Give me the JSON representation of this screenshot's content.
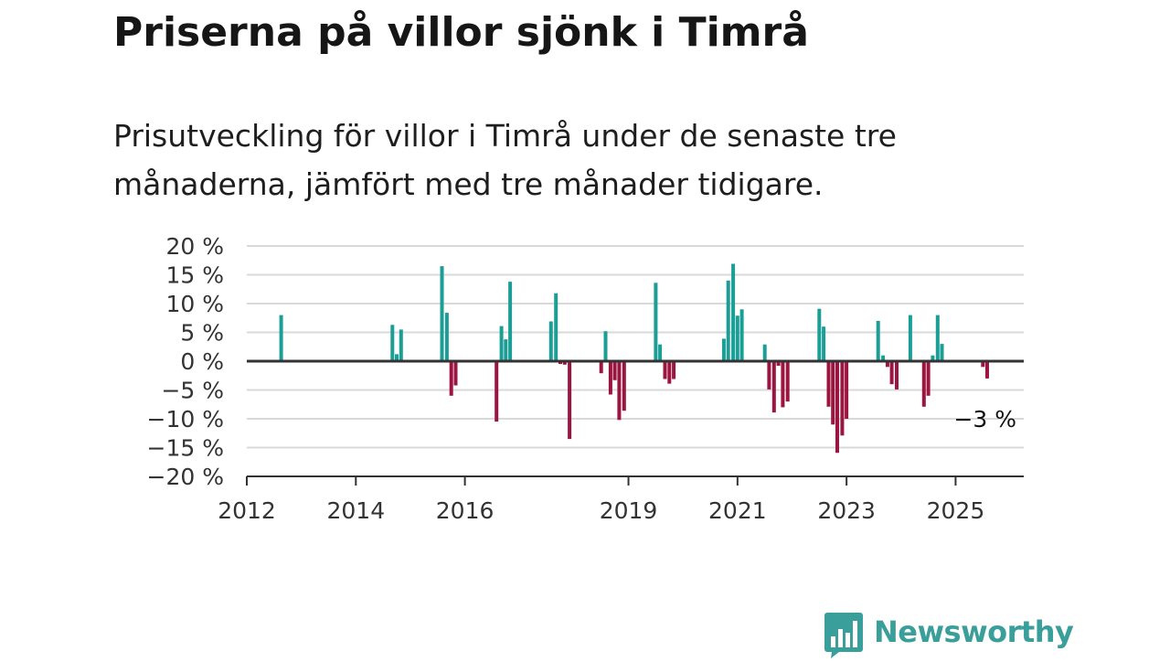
{
  "title": "Priserna på villor sjönk i Timrå",
  "subtitle": "Prisutveckling för villor i Timrå under de senaste tre månaderna, jämfört med tre månader tidigare.",
  "brand": {
    "name": "Newsworthy",
    "color": "#3a9e9a",
    "icon": "chart-bubble-icon"
  },
  "colors": {
    "positive": "#1b9e96",
    "negative": "#9b1540",
    "grid": "#d9d9d9",
    "axis": "#333333"
  },
  "chart_data": {
    "type": "bar",
    "ylim": [
      -20,
      20
    ],
    "y_ticks": [
      20,
      15,
      10,
      5,
      0,
      -5,
      -10,
      -15,
      -20
    ],
    "y_tick_labels": [
      "20 %",
      "15 %",
      "10 %",
      "5 %",
      "0 %",
      "−5 %",
      "−10 %",
      "−15 %",
      "−20 %"
    ],
    "x_ticks": [
      2012,
      2014,
      2016,
      2019,
      2021,
      2023,
      2025
    ],
    "x_tick_labels": [
      "2012",
      "2014",
      "2016",
      "2019",
      "2021",
      "2023",
      "2025"
    ],
    "xlim": [
      2012,
      2026.25
    ],
    "grid": true,
    "annotation": {
      "x": 2025.58,
      "y": -3,
      "text": "−3 %"
    },
    "points": [
      [
        2012.63,
        8
      ],
      [
        2014.67,
        6.3
      ],
      [
        2014.75,
        1.2
      ],
      [
        2014.83,
        5.5
      ],
      [
        2015.58,
        16.5
      ],
      [
        2015.67,
        8.4
      ],
      [
        2015.75,
        -6
      ],
      [
        2015.83,
        -4.2
      ],
      [
        2016.58,
        -10.5
      ],
      [
        2016.67,
        6.1
      ],
      [
        2016.75,
        3.8
      ],
      [
        2016.83,
        13.8
      ],
      [
        2017.58,
        6.9
      ],
      [
        2017.67,
        11.8
      ],
      [
        2017.75,
        -0.5
      ],
      [
        2017.83,
        -0.6
      ],
      [
        2017.92,
        -13.5
      ],
      [
        2018.5,
        -2.1
      ],
      [
        2018.58,
        5.2
      ],
      [
        2018.67,
        -5.8
      ],
      [
        2018.75,
        -3.3
      ],
      [
        2018.83,
        -10.2
      ],
      [
        2018.92,
        -8.6
      ],
      [
        2019.5,
        13.6
      ],
      [
        2019.58,
        2.9
      ],
      [
        2019.67,
        -3.1
      ],
      [
        2019.75,
        -3.9
      ],
      [
        2019.83,
        -3.1
      ],
      [
        2020.75,
        3.9
      ],
      [
        2020.83,
        14
      ],
      [
        2020.92,
        16.9
      ],
      [
        2021.0,
        7.9
      ],
      [
        2021.08,
        9
      ],
      [
        2021.5,
        2.9
      ],
      [
        2021.58,
        -4.9
      ],
      [
        2021.67,
        -8.9
      ],
      [
        2021.75,
        -0.8
      ],
      [
        2021.83,
        -8
      ],
      [
        2021.92,
        -7
      ],
      [
        2022.5,
        9.1
      ],
      [
        2022.58,
        6
      ],
      [
        2022.67,
        -7.9
      ],
      [
        2022.75,
        -11
      ],
      [
        2022.83,
        -15.9
      ],
      [
        2022.92,
        -12.9
      ],
      [
        2023.0,
        -10
      ],
      [
        2023.58,
        7
      ],
      [
        2023.67,
        1
      ],
      [
        2023.75,
        -1
      ],
      [
        2023.83,
        -4
      ],
      [
        2023.92,
        -4.9
      ],
      [
        2024.17,
        8
      ],
      [
        2024.42,
        -7.9
      ],
      [
        2024.5,
        -6
      ],
      [
        2024.58,
        1
      ],
      [
        2024.67,
        8
      ],
      [
        2024.75,
        3
      ],
      [
        2025.5,
        -1
      ],
      [
        2025.58,
        -3
      ]
    ]
  }
}
